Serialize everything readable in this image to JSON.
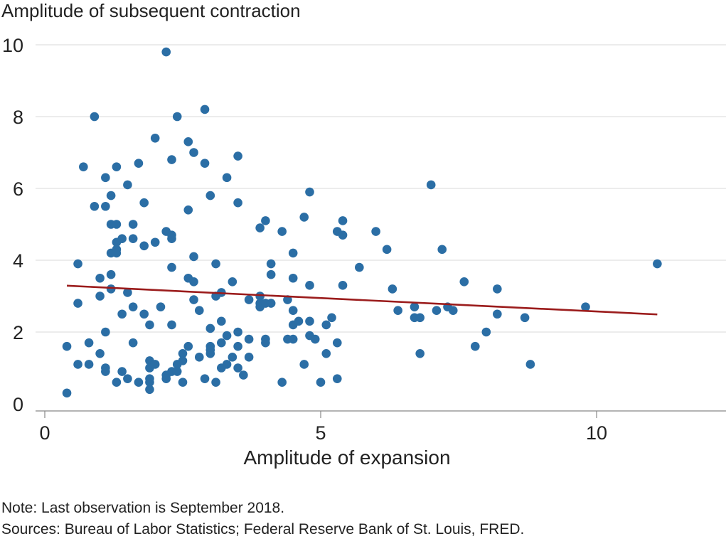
{
  "chart_data": {
    "type": "scatter",
    "title": "",
    "ylabel": "Amplitude of subsequent contraction",
    "xlabel": "Amplitude of expansion",
    "xlim": [
      -0.3,
      12.3
    ],
    "ylim": [
      -0.3,
      10.3
    ],
    "xticks": [
      0,
      5,
      10
    ],
    "yticks": [
      0,
      2,
      4,
      6,
      8,
      10
    ],
    "grid": "horizontal",
    "colors": {
      "points": "#2b6ea5",
      "trend": "#9b1c1c",
      "grid": "#d9d9d9",
      "axis": "#888888"
    },
    "trend_line": {
      "x": [
        0.4,
        11.1
      ],
      "y": [
        3.29,
        2.49
      ]
    },
    "points": [
      [
        0.4,
        1.6
      ],
      [
        0.4,
        0.3
      ],
      [
        0.6,
        3.9
      ],
      [
        0.6,
        2.8
      ],
      [
        0.6,
        1.1
      ],
      [
        0.7,
        6.6
      ],
      [
        0.8,
        1.7
      ],
      [
        0.8,
        1.1
      ],
      [
        0.9,
        8.0
      ],
      [
        0.9,
        5.5
      ],
      [
        1.0,
        3.5
      ],
      [
        1.0,
        3.0
      ],
      [
        1.0,
        1.4
      ],
      [
        1.1,
        6.3
      ],
      [
        1.1,
        5.5
      ],
      [
        1.1,
        2.0
      ],
      [
        1.1,
        1.0
      ],
      [
        1.1,
        0.9
      ],
      [
        1.2,
        5.8
      ],
      [
        1.2,
        5.0
      ],
      [
        1.2,
        4.2
      ],
      [
        1.2,
        3.6
      ],
      [
        1.2,
        3.2
      ],
      [
        1.3,
        6.6
      ],
      [
        1.3,
        5.0
      ],
      [
        1.3,
        4.5
      ],
      [
        1.3,
        4.3
      ],
      [
        1.3,
        4.2
      ],
      [
        1.3,
        0.6
      ],
      [
        1.4,
        4.6
      ],
      [
        1.4,
        2.5
      ],
      [
        1.4,
        0.9
      ],
      [
        1.5,
        6.1
      ],
      [
        1.5,
        3.1
      ],
      [
        1.5,
        0.7
      ],
      [
        1.6,
        5.0
      ],
      [
        1.6,
        4.6
      ],
      [
        1.6,
        2.7
      ],
      [
        1.6,
        1.7
      ],
      [
        1.7,
        6.7
      ],
      [
        1.7,
        0.6
      ],
      [
        1.8,
        5.6
      ],
      [
        1.8,
        4.4
      ],
      [
        1.8,
        2.5
      ],
      [
        1.9,
        2.2
      ],
      [
        1.9,
        1.2
      ],
      [
        1.9,
        1.0
      ],
      [
        1.9,
        0.7
      ],
      [
        1.9,
        0.6
      ],
      [
        1.9,
        0.4
      ],
      [
        2.0,
        7.4
      ],
      [
        2.0,
        4.5
      ],
      [
        2.0,
        1.1
      ],
      [
        2.1,
        2.7
      ],
      [
        2.2,
        9.8
      ],
      [
        2.2,
        4.8
      ],
      [
        2.2,
        0.8
      ],
      [
        2.2,
        0.7
      ],
      [
        2.3,
        6.8
      ],
      [
        2.3,
        4.7
      ],
      [
        2.3,
        4.6
      ],
      [
        2.3,
        3.8
      ],
      [
        2.3,
        2.2
      ],
      [
        2.3,
        0.9
      ],
      [
        2.4,
        8.0
      ],
      [
        2.4,
        1.1
      ],
      [
        2.4,
        0.9
      ],
      [
        2.5,
        1.4
      ],
      [
        2.5,
        1.2
      ],
      [
        2.5,
        0.6
      ],
      [
        2.6,
        7.3
      ],
      [
        2.6,
        5.4
      ],
      [
        2.6,
        3.5
      ],
      [
        2.6,
        1.6
      ],
      [
        2.7,
        7.0
      ],
      [
        2.7,
        4.1
      ],
      [
        2.7,
        3.4
      ],
      [
        2.7,
        2.9
      ],
      [
        2.8,
        2.6
      ],
      [
        2.8,
        1.3
      ],
      [
        2.9,
        8.2
      ],
      [
        2.9,
        6.7
      ],
      [
        2.9,
        0.7
      ],
      [
        3.0,
        5.8
      ],
      [
        3.0,
        2.1
      ],
      [
        3.0,
        1.6
      ],
      [
        3.0,
        1.5
      ],
      [
        3.0,
        1.4
      ],
      [
        3.1,
        3.9
      ],
      [
        3.1,
        3.0
      ],
      [
        3.1,
        0.6
      ],
      [
        3.2,
        3.1
      ],
      [
        3.2,
        2.3
      ],
      [
        3.2,
        1.7
      ],
      [
        3.2,
        1.0
      ],
      [
        3.3,
        6.3
      ],
      [
        3.3,
        1.9
      ],
      [
        3.3,
        1.1
      ],
      [
        3.4,
        3.4
      ],
      [
        3.4,
        1.3
      ],
      [
        3.5,
        6.9
      ],
      [
        3.5,
        5.6
      ],
      [
        3.5,
        2.0
      ],
      [
        3.5,
        1.6
      ],
      [
        3.5,
        1.0
      ],
      [
        3.6,
        0.8
      ],
      [
        3.7,
        2.9
      ],
      [
        3.7,
        1.8
      ],
      [
        3.7,
        1.3
      ],
      [
        3.9,
        4.9
      ],
      [
        3.9,
        3.0
      ],
      [
        3.9,
        2.8
      ],
      [
        3.9,
        2.7
      ],
      [
        4.0,
        5.1
      ],
      [
        4.0,
        2.8
      ],
      [
        4.0,
        1.8
      ],
      [
        4.0,
        1.7
      ],
      [
        4.1,
        3.9
      ],
      [
        4.1,
        3.6
      ],
      [
        4.1,
        2.8
      ],
      [
        4.3,
        4.8
      ],
      [
        4.3,
        0.6
      ],
      [
        4.4,
        2.9
      ],
      [
        4.4,
        1.8
      ],
      [
        4.5,
        4.2
      ],
      [
        4.5,
        3.5
      ],
      [
        4.5,
        2.6
      ],
      [
        4.5,
        2.2
      ],
      [
        4.5,
        1.8
      ],
      [
        4.6,
        2.3
      ],
      [
        4.7,
        5.2
      ],
      [
        4.7,
        1.1
      ],
      [
        4.8,
        5.9
      ],
      [
        4.8,
        3.3
      ],
      [
        4.8,
        2.3
      ],
      [
        4.8,
        1.9
      ],
      [
        4.9,
        1.8
      ],
      [
        5.0,
        0.6
      ],
      [
        5.1,
        2.2
      ],
      [
        5.1,
        1.4
      ],
      [
        5.2,
        2.4
      ],
      [
        5.3,
        4.8
      ],
      [
        5.3,
        1.7
      ],
      [
        5.3,
        0.7
      ],
      [
        5.4,
        5.1
      ],
      [
        5.4,
        4.7
      ],
      [
        5.4,
        3.3
      ],
      [
        5.7,
        3.8
      ],
      [
        6.0,
        4.8
      ],
      [
        6.2,
        4.3
      ],
      [
        6.3,
        3.2
      ],
      [
        6.4,
        2.6
      ],
      [
        6.7,
        2.7
      ],
      [
        6.7,
        2.4
      ],
      [
        6.8,
        2.4
      ],
      [
        6.8,
        1.4
      ],
      [
        7.0,
        6.1
      ],
      [
        7.1,
        2.6
      ],
      [
        7.2,
        4.3
      ],
      [
        7.3,
        2.7
      ],
      [
        7.4,
        2.6
      ],
      [
        7.6,
        3.4
      ],
      [
        7.8,
        1.6
      ],
      [
        8.0,
        2.0
      ],
      [
        8.2,
        3.2
      ],
      [
        8.2,
        2.5
      ],
      [
        8.7,
        2.4
      ],
      [
        8.8,
        1.1
      ],
      [
        9.8,
        2.7
      ],
      [
        11.1,
        3.9
      ]
    ]
  },
  "notes": {
    "note": "Note: Last observation is September 2018.",
    "sources": "Sources: Bureau of Labor Statistics; Federal Reserve Bank of St. Louis, FRED."
  }
}
